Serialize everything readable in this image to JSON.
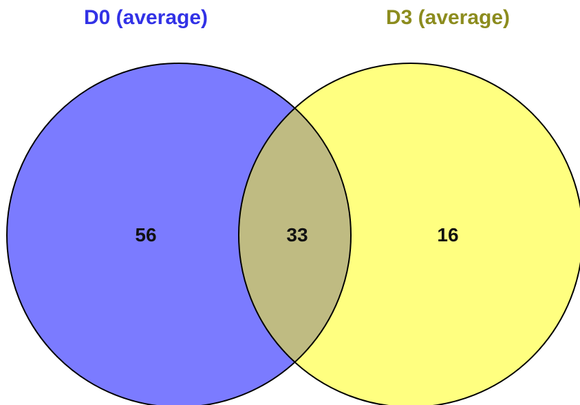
{
  "venn": {
    "sets": [
      {
        "label": "D0 (average)",
        "color": "#7b7bff",
        "title_color": "#3232e6"
      },
      {
        "label": "D3 (average)",
        "color": "#ffff80",
        "title_color": "#8c8c1e"
      }
    ],
    "overlap_color": "#bfbb82",
    "outline_color": "#000000",
    "regions": {
      "only_first": "56",
      "both": "33",
      "only_second": "16"
    }
  }
}
